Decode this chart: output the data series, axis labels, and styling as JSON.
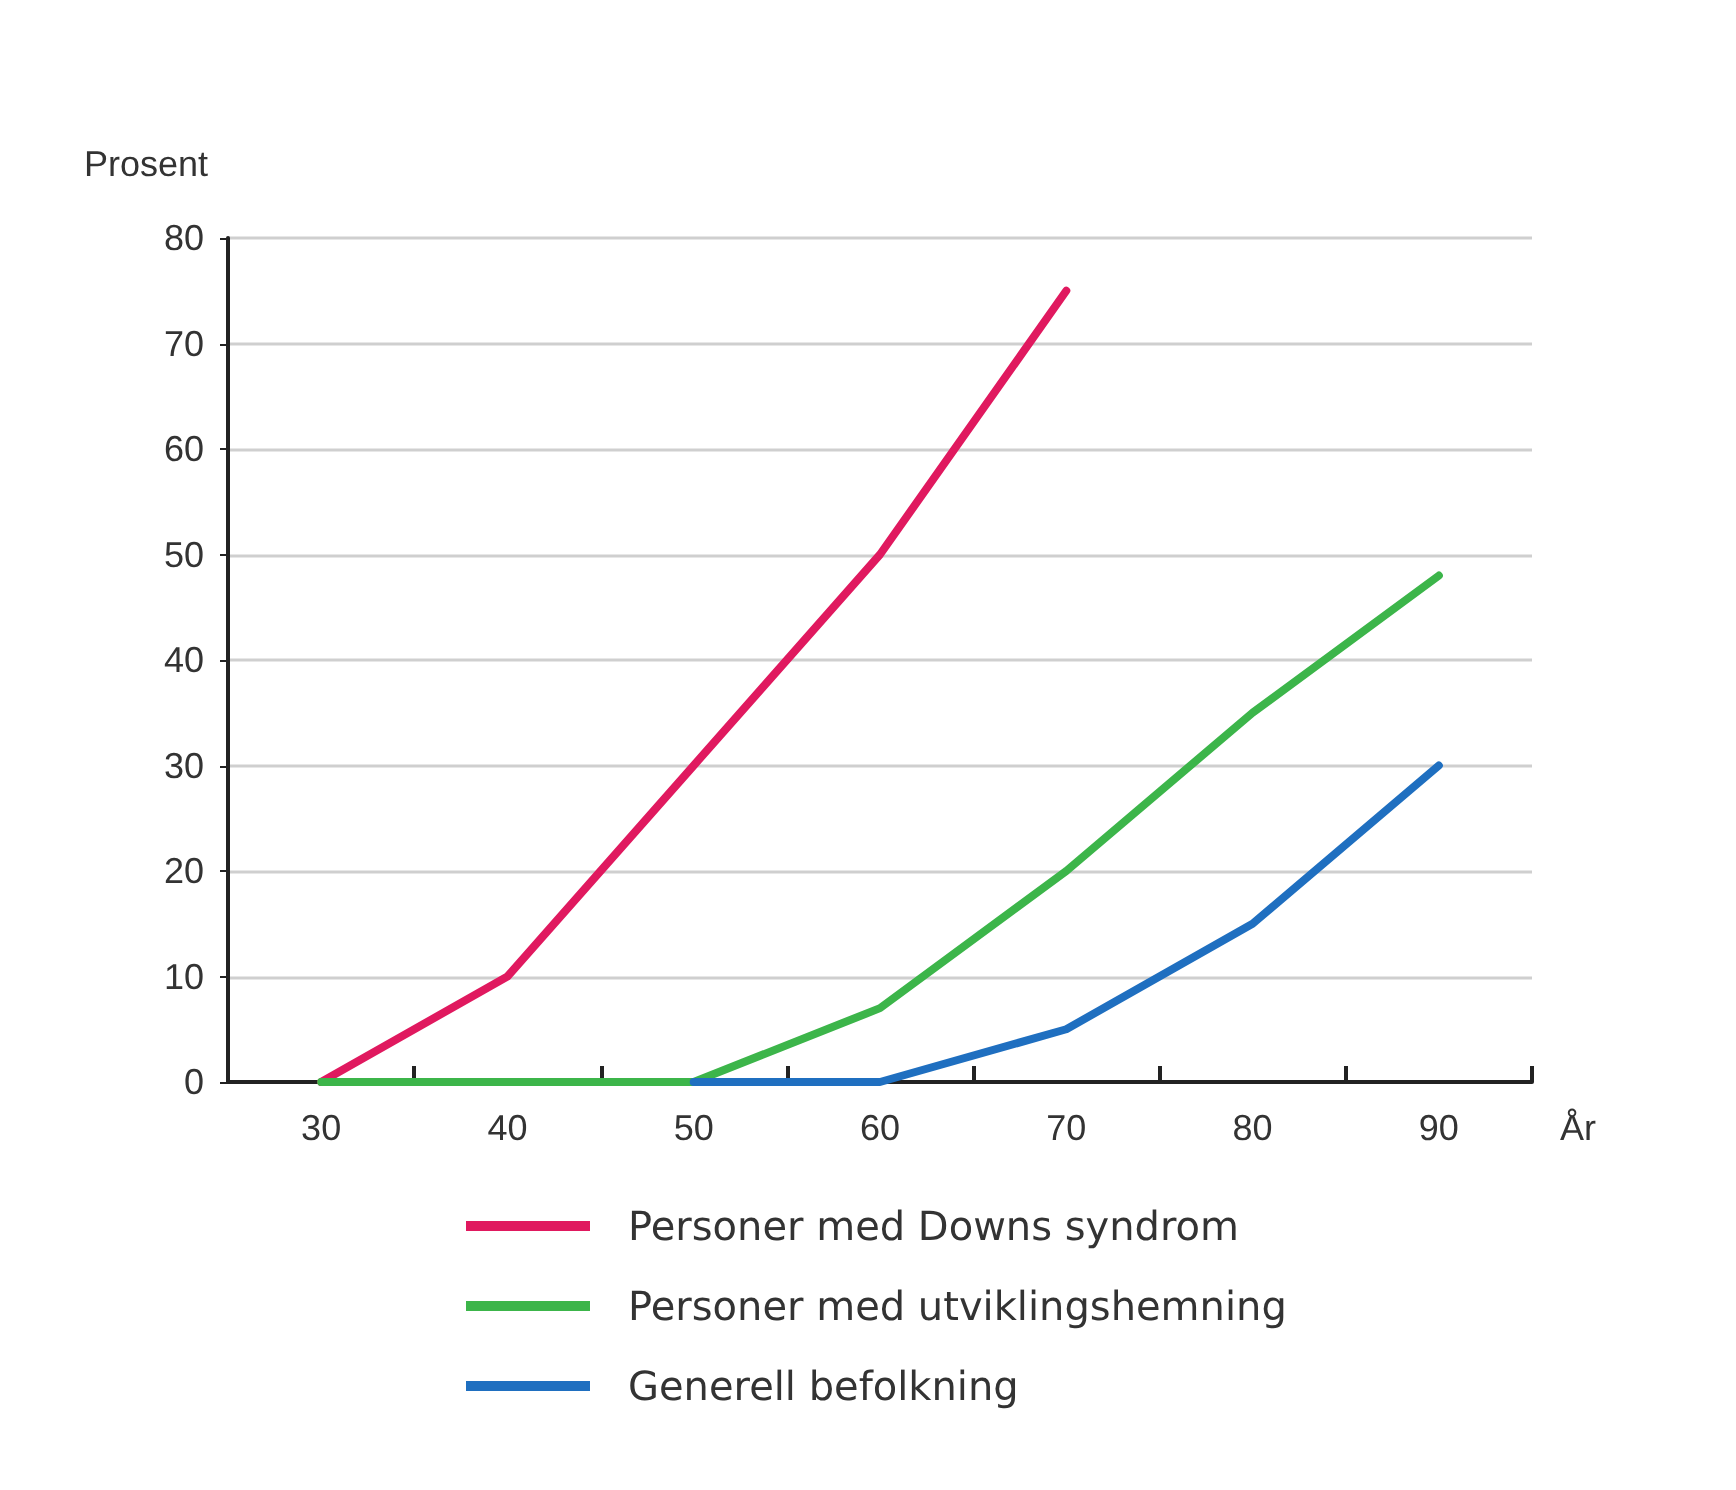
{
  "chart_data": {
    "type": "line",
    "xlabel": "År",
    "ylabel": "Prosent",
    "xlim": [
      25,
      95
    ],
    "xticks": [
      {
        "value": 30,
        "label": "30"
      },
      {
        "value": 35,
        "label": null
      },
      {
        "value": 40,
        "label": "40"
      },
      {
        "value": 45,
        "label": null
      },
      {
        "value": 50,
        "label": "50"
      },
      {
        "value": 55,
        "label": null
      },
      {
        "value": 60,
        "label": "60"
      },
      {
        "value": 65,
        "label": null
      },
      {
        "value": 70,
        "label": "70"
      },
      {
        "value": 75,
        "label": null
      },
      {
        "value": 80,
        "label": "80"
      },
      {
        "value": 85,
        "label": null
      },
      {
        "value": 90,
        "label": "90"
      },
      {
        "value": 95,
        "label": null
      }
    ],
    "ylim": [
      0,
      80
    ],
    "yticks": [
      0,
      10,
      20,
      30,
      40,
      50,
      60,
      70,
      80
    ],
    "grid": "y",
    "legend": "bottom",
    "marker": "none",
    "line_style": "solid",
    "series": [
      {
        "name": "Personer med Downs syndrom",
        "color": "#e0195f",
        "x": [
          30,
          40,
          50,
          60,
          70
        ],
        "values": [
          0,
          10,
          30,
          50,
          75
        ]
      },
      {
        "name": "Personer med utviklingshemning",
        "color": "#3cb54a",
        "x": [
          30,
          50,
          60,
          70,
          80,
          90
        ],
        "values": [
          0,
          0,
          7,
          20,
          35,
          48
        ]
      },
      {
        "name": "Generell befolkning",
        "color": "#1f6fc0",
        "x": [
          50,
          60,
          70,
          80,
          90
        ],
        "values": [
          0,
          0,
          5,
          15,
          30
        ]
      }
    ]
  }
}
